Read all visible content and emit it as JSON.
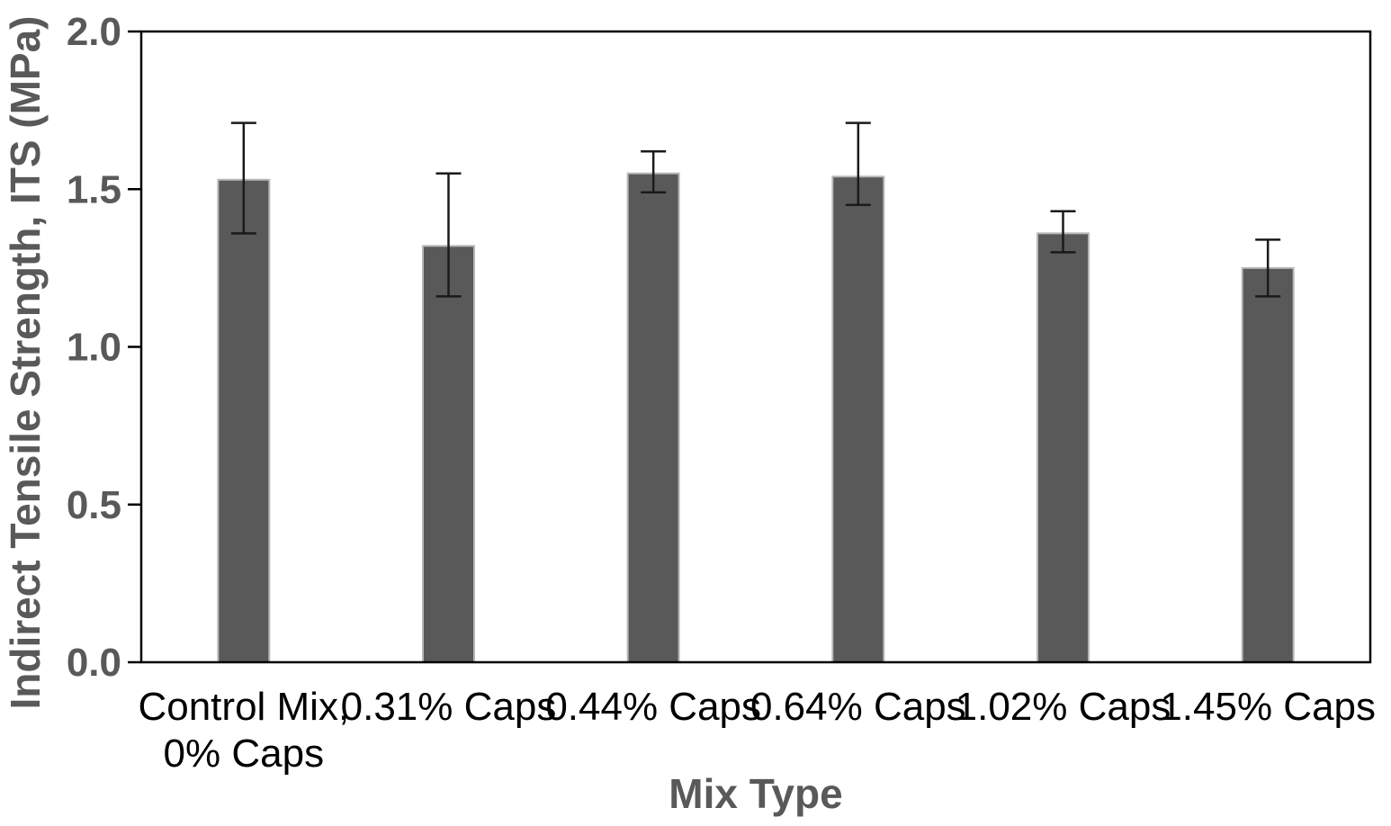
{
  "chart_data": {
    "type": "bar",
    "title": "",
    "xlabel": "Mix Type",
    "ylabel": "Indirect Tensile Strength, ITS (MPa)",
    "categories": [
      "Control Mix, 0% Caps",
      "0.31% Caps",
      "0.44% Caps",
      "0.64% Caps",
      "1.02% Caps",
      "1.45% Caps"
    ],
    "category_label_lines": [
      [
        "Control Mix,",
        "0% Caps"
      ],
      [
        "0.31% Caps"
      ],
      [
        "0.44% Caps"
      ],
      [
        "0.64% Caps"
      ],
      [
        "1.02% Caps"
      ],
      [
        "1.45% Caps"
      ]
    ],
    "values": [
      1.53,
      1.32,
      1.55,
      1.54,
      1.36,
      1.25
    ],
    "error_bars": {
      "whisker_top": [
        1.71,
        1.55,
        1.62,
        1.71,
        1.43,
        1.34
      ],
      "whisker_bottom": [
        1.36,
        1.16,
        1.49,
        1.45,
        1.3,
        1.16
      ]
    },
    "ylim": [
      0.0,
      2.0
    ],
    "yticks": [
      0.0,
      0.5,
      1.0,
      1.5,
      2.0
    ],
    "ytick_labels": [
      "0.0",
      "0.5",
      "1.0",
      "1.5",
      "2.0"
    ],
    "grid": false,
    "legend": null,
    "colors": {
      "bar_fill": "#595959",
      "bar_outline": "#b7b7b7",
      "error_bar": "#1a1a1a",
      "axis_line": "#000000",
      "tick_label": "#595959",
      "axis_title": "#595959",
      "category_label": "#000000",
      "background": "#ffffff"
    }
  }
}
